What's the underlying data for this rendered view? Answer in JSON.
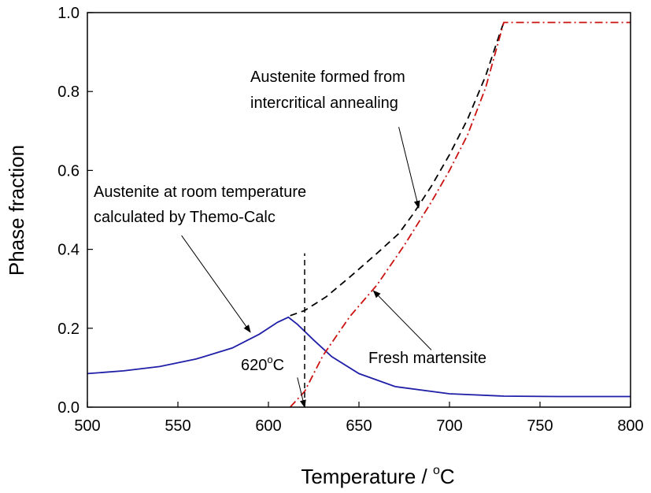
{
  "chart_data": {
    "type": "line",
    "xlabel": "Temperature / ",
    "xlabel_unit": "C",
    "ylabel": "Phase fraction",
    "xlim": [
      500,
      800
    ],
    "ylim": [
      0.0,
      1.0
    ],
    "x_ticks": [
      "500",
      "550",
      "600",
      "650",
      "700",
      "750",
      "800"
    ],
    "y_ticks": [
      "0.0",
      "0.2",
      "0.4",
      "0.6",
      "0.8",
      "1.0"
    ],
    "x_tick_values": [
      500,
      550,
      600,
      650,
      700,
      750,
      800
    ],
    "y_tick_values": [
      0.0,
      0.2,
      0.4,
      0.6,
      0.8,
      1.0
    ],
    "grid": false,
    "series": [
      {
        "key": "room_temp_austenite",
        "style": "solid",
        "color": "#1f1fa8",
        "points": [
          [
            500,
            0.085
          ],
          [
            520,
            0.092
          ],
          [
            540,
            0.103
          ],
          [
            560,
            0.122
          ],
          [
            580,
            0.15
          ],
          [
            595,
            0.185
          ],
          [
            605,
            0.215
          ],
          [
            611,
            0.228
          ],
          [
            616,
            0.21
          ],
          [
            625,
            0.17
          ],
          [
            635,
            0.128
          ],
          [
            650,
            0.085
          ],
          [
            670,
            0.052
          ],
          [
            700,
            0.034
          ],
          [
            730,
            0.028
          ],
          [
            760,
            0.027
          ],
          [
            800,
            0.027
          ]
        ]
      },
      {
        "key": "intercritical_austenite",
        "style": "dashed",
        "color": "#000000",
        "points": [
          [
            612,
            0.232
          ],
          [
            620,
            0.245
          ],
          [
            632,
            0.28
          ],
          [
            645,
            0.33
          ],
          [
            660,
            0.39
          ],
          [
            672,
            0.44
          ],
          [
            680,
            0.49
          ],
          [
            690,
            0.56
          ],
          [
            700,
            0.64
          ],
          [
            710,
            0.73
          ],
          [
            720,
            0.84
          ],
          [
            728,
            0.95
          ],
          [
            730,
            0.975
          ]
        ]
      },
      {
        "key": "fresh_martensite",
        "style": "dashdot",
        "color": "#cc1111",
        "points": [
          [
            612,
            0.0
          ],
          [
            620,
            0.04
          ],
          [
            630,
            0.13
          ],
          [
            645,
            0.23
          ],
          [
            660,
            0.31
          ],
          [
            675,
            0.41
          ],
          [
            690,
            0.52
          ],
          [
            700,
            0.6
          ],
          [
            710,
            0.69
          ],
          [
            720,
            0.81
          ],
          [
            730,
            0.975
          ],
          [
            760,
            0.975
          ],
          [
            800,
            0.975
          ]
        ]
      }
    ],
    "reference_line": {
      "x": 620,
      "y_range": [
        0.0,
        0.39
      ]
    },
    "annotations": [
      {
        "key": "a1",
        "lines": [
          "Austenite formed from",
          "intercritical annealing"
        ],
        "arrow_from": [
          672,
          0.71
        ],
        "arrow_to": [
          683,
          0.505
        ]
      },
      {
        "key": "a2",
        "lines": [
          "Austenite at room temperature",
          "calculated by Themo-Calc"
        ],
        "arrow_from": [
          552,
          0.435
        ],
        "arrow_to": [
          590,
          0.19
        ]
      },
      {
        "key": "a3",
        "lines": [
          "Fresh martensite"
        ],
        "arrow_from": [
          690,
          0.145
        ],
        "arrow_to": [
          658,
          0.295
        ]
      },
      {
        "key": "a4",
        "lines": [
          "620",
          "C"
        ],
        "degree": "o",
        "arrow_from": [
          616,
          0.075
        ],
        "arrow_to": [
          620,
          0.0
        ]
      }
    ]
  }
}
